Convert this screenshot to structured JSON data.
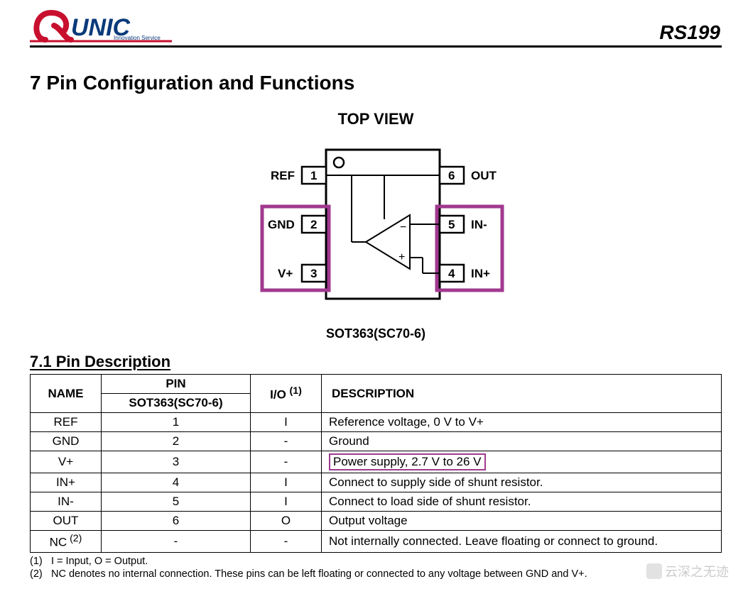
{
  "header": {
    "brand_main": "UNIC",
    "brand_sub": "Innovation Service",
    "part_number": "RS199"
  },
  "section_title": "7 Pin Configuration and Functions",
  "diagram": {
    "title": "TOP VIEW",
    "package_label": "SOT363(SC70-6)",
    "pins_left": [
      {
        "num": "1",
        "name": "REF"
      },
      {
        "num": "2",
        "name": "GND"
      },
      {
        "num": "3",
        "name": "V+"
      }
    ],
    "pins_right": [
      {
        "num": "6",
        "name": "OUT"
      },
      {
        "num": "5",
        "name": "IN-"
      },
      {
        "num": "4",
        "name": "IN+"
      }
    ],
    "highlight_color": "#a0398f",
    "body_stroke": "#000000",
    "body_width": 160,
    "body_height": 210,
    "pin_w": 34,
    "pin_h": 24,
    "label_font": 17
  },
  "subsection_title": "7.1 Pin Description",
  "table": {
    "head": {
      "name": "NAME",
      "pin": "PIN",
      "pkg": "SOT363(SC70-6)",
      "io": "I/O",
      "io_note": "(1)",
      "desc": "DESCRIPTION"
    },
    "rows": [
      {
        "name": "REF",
        "pin": "1",
        "io": "I",
        "desc": "Reference voltage, 0 V to V+",
        "hl": false
      },
      {
        "name": "GND",
        "pin": "2",
        "io": "-",
        "desc": "Ground",
        "hl": false
      },
      {
        "name": "V+",
        "pin": "3",
        "io": "-",
        "desc": "Power supply, 2.7 V to 26 V",
        "hl": true
      },
      {
        "name": "IN+",
        "pin": "4",
        "io": "I",
        "desc": "Connect to supply side of shunt resistor.",
        "hl": false
      },
      {
        "name": "IN-",
        "pin": "5",
        "io": "I",
        "desc": "Connect to load side of shunt resistor.",
        "hl": false
      },
      {
        "name": "OUT",
        "pin": "6",
        "io": "O",
        "desc": "Output voltage",
        "hl": false
      },
      {
        "name": "NC",
        "name_note": "(2)",
        "pin": "-",
        "io": "-",
        "desc": "Not internally connected. Leave floating or connect to ground.",
        "hl": false
      }
    ]
  },
  "notes": {
    "n1_lbl": "(1)",
    "n1": "I = Input, O = Output.",
    "n2_lbl": "(2)",
    "n2": "NC denotes no internal connection. These pins can be left floating or connected to any voltage between GND and V+."
  },
  "watermark": "云深之无迹",
  "colors": {
    "brand_red": "#c8102e",
    "brand_blue": "#0a3a7a",
    "highlight": "#a0398f"
  }
}
